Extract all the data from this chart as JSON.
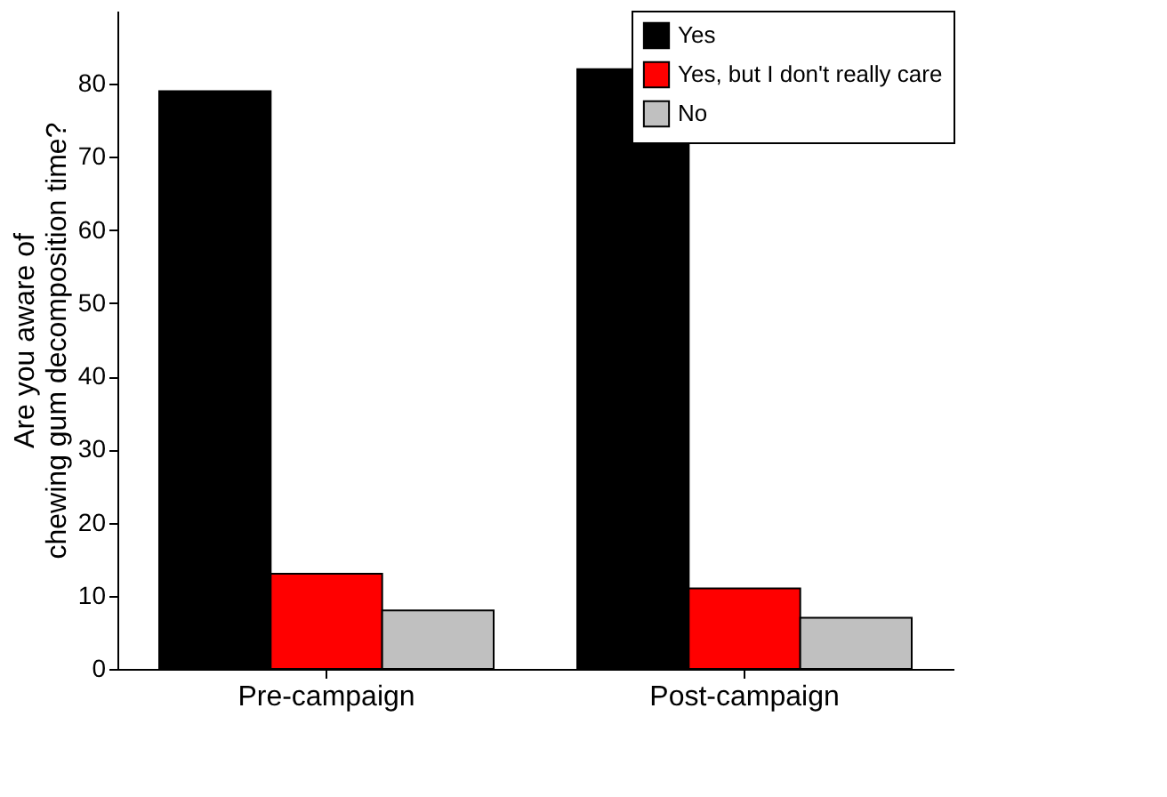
{
  "chart_data": {
    "type": "bar",
    "ylabel": "Are you  aware of\nchewing gum decomposition time?",
    "categories": [
      "Pre-campaign",
      "Post-campaign"
    ],
    "series": [
      {
        "name": "Yes",
        "color": "#000000",
        "values": [
          79,
          82
        ]
      },
      {
        "name": "Yes, but I don't really care",
        "color": "#ff0000",
        "values": [
          13,
          11
        ]
      },
      {
        "name": "No",
        "color": "#c0c0c0",
        "values": [
          8,
          7
        ]
      }
    ],
    "ylim": [
      0,
      90
    ],
    "yticks": [
      0,
      10,
      20,
      30,
      40,
      50,
      60,
      70,
      80
    ],
    "grid": false,
    "legend": "top right"
  }
}
